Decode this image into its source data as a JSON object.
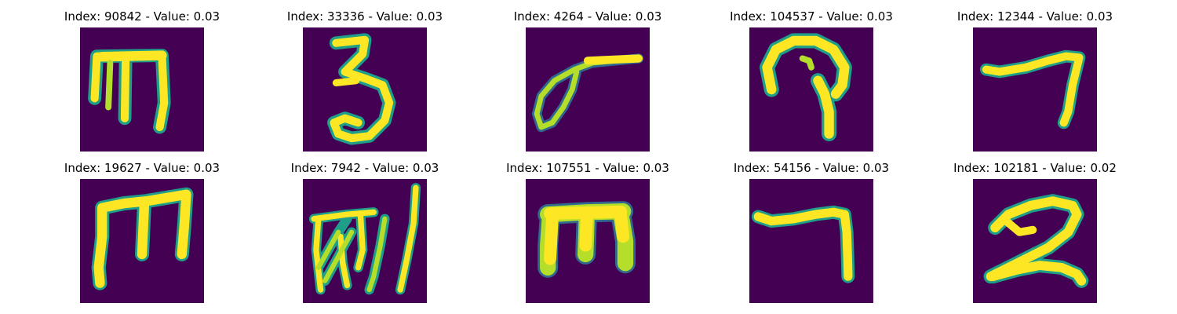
{
  "colors": {
    "background": "#440154",
    "stroke_core": "#fde725",
    "stroke_mid": "#b5de2b",
    "stroke_edge": "#1f9e89",
    "stroke_halo": "#31688e"
  },
  "panels": [
    {
      "title": "Index: 90842 - Value: 0.03",
      "glyph": "m-letter-icon"
    },
    {
      "title": "Index: 33336 - Value: 0.03",
      "glyph": "digit-3-icon"
    },
    {
      "title": "Index: 4264 - Value: 0.03",
      "glyph": "loop-stroke-icon"
    },
    {
      "title": "Index: 104537 - Value: 0.03",
      "glyph": "hook-shape-icon"
    },
    {
      "title": "Index: 12344 - Value: 0.03",
      "glyph": "digit-7-icon"
    },
    {
      "title": "Index: 19627 - Value: 0.03",
      "glyph": "m-letter-icon"
    },
    {
      "title": "Index: 7942 - Value: 0.03",
      "glyph": "scribble-icon"
    },
    {
      "title": "Index: 107551 - Value: 0.03",
      "glyph": "m-letter-icon"
    },
    {
      "title": "Index: 54156 - Value: 0.03",
      "glyph": "digit-7-icon"
    },
    {
      "title": "Index: 102181 - Value: 0.02",
      "glyph": "digit-2-icon"
    }
  ]
}
